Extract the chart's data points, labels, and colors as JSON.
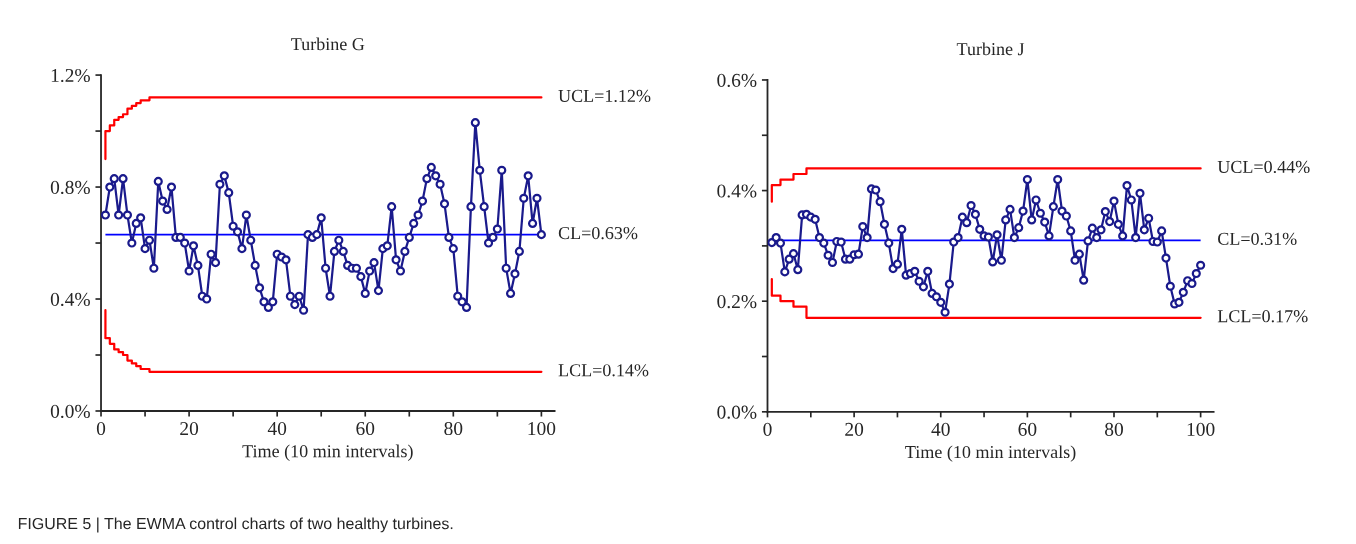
{
  "chart_data": [
    {
      "type": "line",
      "title": "Turbine G",
      "xlabel": "Time (10 min intervals)",
      "marker": "circle",
      "xlim": [
        0,
        103
      ],
      "xticks": [
        0,
        {
          "value": 10,
          "label": null
        },
        20,
        {
          "value": 30,
          "label": null
        },
        40,
        {
          "value": 50,
          "label": null
        },
        60,
        {
          "value": 70,
          "label": null
        },
        80,
        {
          "value": 90,
          "label": null
        },
        100
      ],
      "ylim": [
        0,
        1.2
      ],
      "yticks": [
        {
          "value": 0,
          "label": "0.0%"
        },
        {
          "value": 0.2,
          "label": null
        },
        {
          "value": 0.4,
          "label": "0.4%"
        },
        {
          "value": 0.6,
          "label": null
        },
        {
          "value": 0.8,
          "label": "0.8%"
        },
        {
          "value": 1.0,
          "label": null
        },
        {
          "value": 1.2,
          "label": "1.2%"
        }
      ],
      "x": [
        1,
        2,
        3,
        4,
        5,
        6,
        7,
        8,
        9,
        10,
        11,
        12,
        13,
        14,
        15,
        16,
        17,
        18,
        19,
        20,
        21,
        22,
        23,
        24,
        25,
        26,
        27,
        28,
        29,
        30,
        31,
        32,
        33,
        34,
        35,
        36,
        37,
        38,
        39,
        40,
        41,
        42,
        43,
        44,
        45,
        46,
        47,
        48,
        49,
        50,
        51,
        52,
        53,
        54,
        55,
        56,
        57,
        58,
        59,
        60,
        61,
        62,
        63,
        64,
        65,
        66,
        67,
        68,
        69,
        70,
        71,
        72,
        73,
        74,
        75,
        76,
        77,
        78,
        79,
        80,
        81,
        82,
        83,
        84,
        85,
        86,
        87,
        88,
        89,
        90,
        91,
        92,
        93,
        94,
        95,
        96,
        97,
        98,
        99,
        100
      ],
      "series": [
        {
          "color": "#1a1a8c",
          "values": [
            0.7,
            0.8,
            0.83,
            0.7,
            0.83,
            0.7,
            0.6,
            0.67,
            0.69,
            0.58,
            0.61,
            0.51,
            0.82,
            0.75,
            0.72,
            0.8,
            0.62,
            0.62,
            0.6,
            0.5,
            0.59,
            0.52,
            0.41,
            0.4,
            0.56,
            0.53,
            0.81,
            0.84,
            0.78,
            0.66,
            0.64,
            0.58,
            0.7,
            0.61,
            0.52,
            0.44,
            0.39,
            0.37,
            0.39,
            0.56,
            0.55,
            0.54,
            0.41,
            0.38,
            0.41,
            0.36,
            0.63,
            0.62,
            0.63,
            0.69,
            0.51,
            0.41,
            0.57,
            0.61,
            0.57,
            0.52,
            0.51,
            0.51,
            0.48,
            0.42,
            0.5,
            0.53,
            0.43,
            0.58,
            0.59,
            0.73,
            0.54,
            0.5,
            0.57,
            0.62,
            0.67,
            0.7,
            0.75,
            0.83,
            0.87,
            0.84,
            0.81,
            0.74,
            0.62,
            0.58,
            0.41,
            0.39,
            0.37,
            0.73,
            1.03,
            0.86,
            0.73,
            0.6,
            0.62,
            0.65,
            0.86,
            0.51,
            0.42,
            0.49,
            0.57,
            0.76,
            0.84,
            0.67,
            0.76,
            0.63
          ]
        },
        {
          "type": "step",
          "name": "UCL=1.12%",
          "color": "#ff0000",
          "marker": "none",
          "x": [
            1,
            1,
            2,
            3,
            4,
            5,
            6,
            7,
            8,
            9,
            10,
            11,
            100
          ],
          "values": [
            0.9,
            1.0,
            1.02,
            1.04,
            1.05,
            1.06,
            1.08,
            1.09,
            1.1,
            1.11,
            1.11,
            1.12,
            1.12
          ]
        },
        {
          "type": "step",
          "name": "LCL=0.14%",
          "color": "#ff0000",
          "marker": "none",
          "x": [
            1,
            1,
            2,
            3,
            4,
            5,
            6,
            7,
            8,
            9,
            10,
            11,
            100
          ],
          "values": [
            0.36,
            0.26,
            0.24,
            0.22,
            0.21,
            0.2,
            0.18,
            0.17,
            0.16,
            0.15,
            0.15,
            0.14,
            0.14
          ]
        }
      ],
      "ref_lines": [
        {
          "axis": "y",
          "value": 0.63,
          "label": "CL=0.63%",
          "color": "#0000ff"
        }
      ],
      "annotations": [
        "FIGURE 5 | The EWMA control charts of two healthy turbines."
      ]
    },
    {
      "type": "line",
      "title": "Turbine J",
      "xlabel": "Time (10 min intervals)",
      "marker": "circle",
      "xlim": [
        0,
        103
      ],
      "xticks": [
        0,
        {
          "value": 10,
          "label": null
        },
        20,
        {
          "value": 30,
          "label": null
        },
        40,
        {
          "value": 50,
          "label": null
        },
        60,
        {
          "value": 70,
          "label": null
        },
        80,
        {
          "value": 90,
          "label": null
        },
        100
      ],
      "ylim": [
        0,
        0.6
      ],
      "yticks": [
        {
          "value": 0,
          "label": "0.0%"
        },
        {
          "value": 0.1,
          "label": null
        },
        {
          "value": 0.2,
          "label": "0.2%"
        },
        {
          "value": 0.3,
          "label": null
        },
        {
          "value": 0.4,
          "label": "0.4%"
        },
        {
          "value": 0.5,
          "label": null
        },
        {
          "value": 0.6,
          "label": "0.6%"
        }
      ],
      "x": [
        1,
        2,
        3,
        4,
        5,
        6,
        7,
        8,
        9,
        10,
        11,
        12,
        13,
        14,
        15,
        16,
        17,
        18,
        19,
        20,
        21,
        22,
        23,
        24,
        25,
        26,
        27,
        28,
        29,
        30,
        31,
        32,
        33,
        34,
        35,
        36,
        37,
        38,
        39,
        40,
        41,
        42,
        43,
        44,
        45,
        46,
        47,
        48,
        49,
        50,
        51,
        52,
        53,
        54,
        55,
        56,
        57,
        58,
        59,
        60,
        61,
        62,
        63,
        64,
        65,
        66,
        67,
        68,
        69,
        70,
        71,
        72,
        73,
        74,
        75,
        76,
        77,
        78,
        79,
        80,
        81,
        82,
        83,
        84,
        85,
        86,
        87,
        88,
        89,
        90,
        91,
        92,
        93,
        94,
        95,
        96,
        97,
        98,
        99,
        100
      ],
      "series": [
        {
          "color": "#1a1a8c",
          "values": [
            0.306,
            0.315,
            0.305,
            0.253,
            0.276,
            0.286,
            0.257,
            0.356,
            0.357,
            0.352,
            0.348,
            0.315,
            0.305,
            0.283,
            0.27,
            0.308,
            0.307,
            0.276,
            0.276,
            0.284,
            0.285,
            0.335,
            0.315,
            0.403,
            0.401,
            0.38,
            0.339,
            0.305,
            0.259,
            0.267,
            0.33,
            0.247,
            0.25,
            0.254,
            0.236,
            0.226,
            0.254,
            0.214,
            0.208,
            0.198,
            0.18,
            0.231,
            0.307,
            0.315,
            0.352,
            0.342,
            0.373,
            0.357,
            0.33,
            0.318,
            0.316,
            0.271,
            0.32,
            0.274,
            0.347,
            0.366,
            0.315,
            0.333,
            0.363,
            0.42,
            0.347,
            0.383,
            0.359,
            0.343,
            0.318,
            0.371,
            0.42,
            0.363,
            0.354,
            0.327,
            0.274,
            0.285,
            0.238,
            0.309,
            0.332,
            0.315,
            0.329,
            0.362,
            0.344,
            0.381,
            0.339,
            0.318,
            0.409,
            0.383,
            0.315,
            0.395,
            0.329,
            0.35,
            0.308,
            0.307,
            0.327,
            0.278,
            0.227,
            0.195,
            0.198,
            0.216,
            0.237,
            0.232,
            0.25,
            0.265
          ]
        },
        {
          "type": "step",
          "name": "UCL=0.44%",
          "color": "#ff0000",
          "marker": "none",
          "x": [
            1,
            1,
            3,
            6,
            9,
            100
          ],
          "values": [
            0.38,
            0.41,
            0.42,
            0.43,
            0.44,
            0.44
          ]
        },
        {
          "type": "step",
          "name": "LCL=0.17%",
          "color": "#ff0000",
          "marker": "none",
          "x": [
            1,
            1,
            3,
            6,
            9,
            100
          ],
          "values": [
            0.24,
            0.21,
            0.2,
            0.19,
            0.17,
            0.17
          ]
        }
      ],
      "ref_lines": [
        {
          "axis": "y",
          "value": 0.31,
          "label": "CL=0.31%",
          "color": "#0000ff"
        }
      ]
    }
  ]
}
